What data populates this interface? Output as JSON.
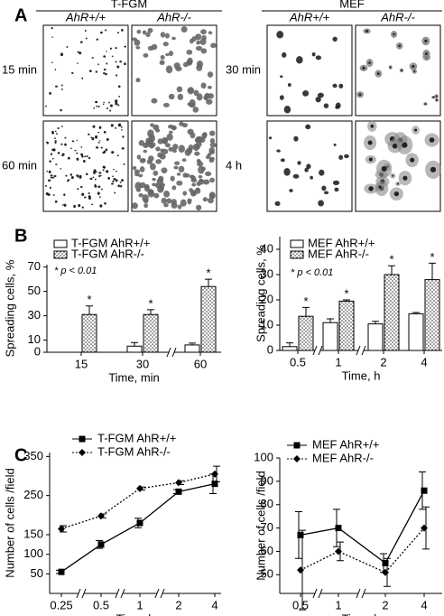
{
  "panel_a": {
    "label": "A",
    "groups": [
      {
        "title": "T-FGM",
        "columns": [
          "AhR+/+",
          "AhR-/-"
        ],
        "rows": [
          "15 min",
          "60 min"
        ]
      },
      {
        "title": "MEF",
        "columns": [
          "AhR+/+",
          "AhR-/-"
        ],
        "rows": [
          "30 min",
          "4 h"
        ]
      }
    ]
  },
  "panel_labels": [
    "B",
    "C"
  ],
  "chart_data": [
    {
      "type": "bar",
      "x_label": "Time, min",
      "y_label": "Spreading cells, %",
      "annotation": "* p < 0.01",
      "categories": [
        "15",
        "30",
        "60"
      ],
      "ylim": [
        0,
        72
      ],
      "yticks": [
        0,
        10,
        30,
        50,
        70
      ],
      "series": [
        {
          "name": "T-FGM AhR+/+",
          "color": "#ffffff",
          "fill": "solid",
          "values": [
            0,
            5,
            6
          ],
          "errors": [
            0,
            3,
            1.5
          ]
        },
        {
          "name": "T-FGM AhR-/-",
          "color": "#ffffff",
          "fill": "dotted",
          "values": [
            31,
            31,
            54
          ],
          "errors": [
            7,
            4,
            6
          ],
          "stars": [
            "*",
            "*",
            "*"
          ]
        }
      ]
    },
    {
      "type": "bar",
      "x_label": "Time, h",
      "y_label": "Spreading cells, %",
      "annotation": "* p < 0.01",
      "categories": [
        "0.5",
        "1",
        "2",
        "4"
      ],
      "ylim": [
        0,
        45
      ],
      "yticks": [
        0,
        10,
        20,
        30,
        40
      ],
      "series": [
        {
          "name": "MEF AhR+/+",
          "color": "#ffffff",
          "fill": "solid",
          "values": [
            1.5,
            11,
            10.5,
            14.5
          ],
          "errors": [
            1.5,
            1.5,
            1,
            0.5
          ]
        },
        {
          "name": "MEF AhR-/-",
          "color": "#ffffff",
          "fill": "dotted",
          "values": [
            13.5,
            19.5,
            30,
            28
          ],
          "errors": [
            3.5,
            0.5,
            3.5,
            6.5
          ],
          "stars": [
            "*",
            "*",
            "*",
            "*"
          ]
        }
      ]
    },
    {
      "type": "line",
      "x_label": "Time, h",
      "y_label": "Number of cells /field",
      "categories": [
        "0.25",
        "0.5",
        "1",
        "2",
        "4"
      ],
      "ylim": [
        0,
        360
      ],
      "yticks": [
        50,
        100,
        150,
        250,
        350
      ],
      "series": [
        {
          "name": "T-FGM AhR+/+",
          "color": "#000000",
          "marker": "square",
          "line_style": "solid",
          "values": [
            55,
            125,
            180,
            260,
            280
          ],
          "errors": [
            4,
            10,
            12,
            5,
            25
          ]
        },
        {
          "name": "T-FGM AhR-/-",
          "color": "#000000",
          "marker": "diamond",
          "line_style": "dotted",
          "values": [
            165,
            198,
            268,
            283,
            305
          ],
          "errors": [
            8,
            5,
            4,
            5,
            20
          ]
        }
      ]
    },
    {
      "type": "line",
      "x_label": "Time, h",
      "y_label": "Number of cells /field",
      "categories": [
        "0.5",
        "1",
        "2",
        "4"
      ],
      "ylim": [
        42,
        100
      ],
      "yticks": [
        50,
        60,
        70,
        80,
        90,
        100
      ],
      "series": [
        {
          "name": "MEF AhR+/+",
          "color": "#000000",
          "marker": "square",
          "line_style": "solid",
          "values": [
            67,
            70,
            55,
            86
          ],
          "errors": [
            10,
            8,
            4,
            8
          ]
        },
        {
          "name": "MEF AhR-/-",
          "color": "#000000",
          "marker": "diamond",
          "line_style": "dotted",
          "values": [
            52,
            60,
            51,
            70
          ],
          "errors": [
            17,
            4,
            6,
            9
          ]
        }
      ]
    }
  ]
}
